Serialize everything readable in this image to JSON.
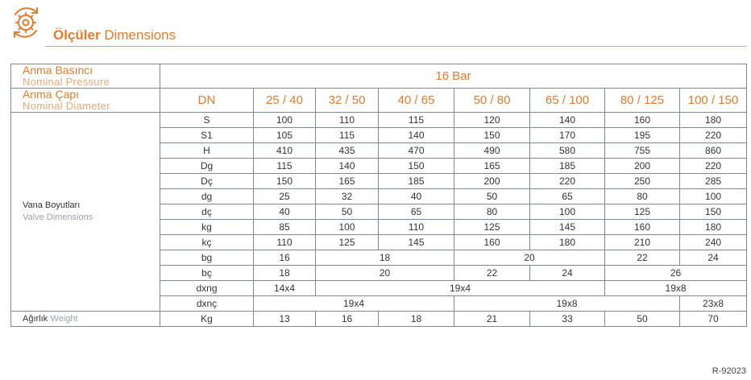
{
  "header": {
    "title_tr": "Ölçüler",
    "title_en": "Dimensions",
    "icon": "gear-refresh-icon",
    "accent_color": "#e27b2d"
  },
  "table": {
    "pressure_label_tr": "Anma Basıncı",
    "pressure_label_en": "Nominal Pressure",
    "pressure_value": "16 Bar",
    "diameter_label_tr": "Anma Çapı",
    "diameter_label_en": "Nominal Diameter",
    "dn_label": "DN",
    "sizes": [
      "25 / 40",
      "32 / 50",
      "40 / 65",
      "50 / 80",
      "65 / 100",
      "80 / 125",
      "100 / 150"
    ],
    "section_tr": "Vana Boyutları",
    "section_en": "Valve Dimensions",
    "rows": [
      {
        "name": "S",
        "values": [
          "100",
          "110",
          "115",
          "120",
          "140",
          "160",
          "180"
        ]
      },
      {
        "name": "S1",
        "values": [
          "105",
          "115",
          "140",
          "150",
          "170",
          "195",
          "220"
        ]
      },
      {
        "name": "H",
        "values": [
          "410",
          "435",
          "470",
          "490",
          "580",
          "755",
          "860"
        ]
      },
      {
        "name": "Dg",
        "values": [
          "115",
          "140",
          "150",
          "165",
          "185",
          "200",
          "220"
        ]
      },
      {
        "name": "Dç",
        "values": [
          "150",
          "165",
          "185",
          "200",
          "220",
          "250",
          "285"
        ]
      },
      {
        "name": "dg",
        "values": [
          "25",
          "32",
          "40",
          "50",
          "65",
          "80",
          "100"
        ]
      },
      {
        "name": "dç",
        "values": [
          "40",
          "50",
          "65",
          "80",
          "100",
          "125",
          "150"
        ]
      },
      {
        "name": "kg",
        "values": [
          "85",
          "100",
          "110",
          "125",
          "145",
          "160",
          "180"
        ]
      },
      {
        "name": "kç",
        "values": [
          "110",
          "125",
          "145",
          "160",
          "180",
          "210",
          "240"
        ]
      }
    ],
    "bg": {
      "name": "bg",
      "values": [
        "16",
        "18",
        "20",
        "22",
        "24"
      ]
    },
    "bc": {
      "name": "bç",
      "values": [
        "18",
        "20",
        "22",
        "24",
        "26"
      ]
    },
    "dxng": {
      "name": "dxng",
      "values": [
        "14x4",
        "19x4",
        "19x8"
      ]
    },
    "dxnc": {
      "name": "dxnç",
      "values": [
        "19x4",
        "19x8",
        "23x8"
      ]
    },
    "weight_tr": "Ağırlık",
    "weight_en": "Weight",
    "weight_unit": "Kg",
    "weights": [
      "13",
      "16",
      "18",
      "21",
      "33",
      "50",
      "70"
    ]
  },
  "footer": {
    "code": "R-92023"
  }
}
